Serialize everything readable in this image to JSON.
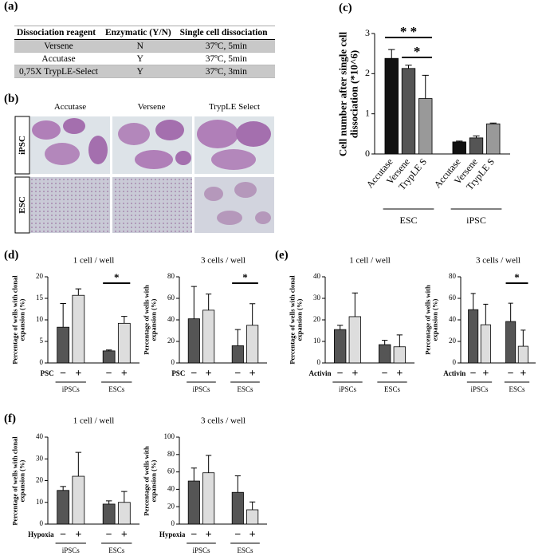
{
  "panel_labels": [
    "(a)",
    "(b)",
    "(c)",
    "(d)",
    "(e)",
    "(f)"
  ],
  "table": {
    "headers": [
      "Dissociation reagent",
      "Enzymatic (Y/N)",
      "Single cell dissociation"
    ],
    "rows": [
      [
        "Versene",
        "N",
        "37ºC, 5min"
      ],
      [
        "Accutase",
        "Y",
        "37ºC, 5min"
      ],
      [
        "0,75X TrypLE-Select",
        "Y",
        "37ºC, 3min"
      ]
    ]
  },
  "images": {
    "columns": [
      "Accutase",
      "Versene",
      "TrypLE Select"
    ],
    "rows": [
      "iPSC",
      "ESC"
    ]
  },
  "chart_data": [
    {
      "type": "bar",
      "ylabel": "Cell number after single cell dissociation (*10^6)",
      "categories": [
        "Accutase",
        "Versene",
        "TrypLE S",
        "Accutase",
        "Versene",
        "TrypLE S"
      ],
      "groups": [
        "ESC",
        "iPSC"
      ],
      "values": [
        2.38,
        2.13,
        1.38,
        0.3,
        0.4,
        0.75
      ],
      "errors": [
        0.22,
        0.08,
        0.58,
        0.02,
        0.05,
        0.02
      ],
      "colors": [
        "#111111",
        "#555555",
        "#999999",
        "#111111",
        "#555555",
        "#999999"
      ],
      "ylim": [
        0,
        3
      ],
      "yticks": [
        0,
        1,
        2,
        3
      ],
      "annotations": [
        "* *",
        "*"
      ]
    },
    {
      "type": "bar",
      "title": "1 cell / well",
      "ylabel": "Percentage of wells with clonal expansion (%)",
      "condition": "PSC",
      "categories": [
        "−",
        "+",
        "−",
        "+"
      ],
      "groups": [
        "iPSCs",
        "ESCs"
      ],
      "values": [
        8.3,
        15.7,
        2.8,
        9.2
      ],
      "errors": [
        5.5,
        1.5,
        0.2,
        1.6
      ],
      "colors": [
        "#555555",
        "#dddddd",
        "#555555",
        "#dddddd"
      ],
      "ylim": [
        0,
        20
      ],
      "yticks": [
        0,
        5,
        10,
        15,
        20
      ],
      "annotations": [
        "*"
      ]
    },
    {
      "type": "bar",
      "title": "3 cells / well",
      "ylabel": "Percentage of wells with expansion (%)",
      "condition": "PSC",
      "categories": [
        "−",
        "+",
        "−",
        "+"
      ],
      "groups": [
        "iPSCs",
        "ESCs"
      ],
      "values": [
        41,
        49,
        16,
        35
      ],
      "errors": [
        30,
        15,
        15,
        20
      ],
      "colors": [
        "#555555",
        "#dddddd",
        "#555555",
        "#dddddd"
      ],
      "ylim": [
        0,
        80
      ],
      "yticks": [
        0,
        20,
        40,
        60,
        80
      ],
      "annotations": [
        "*"
      ]
    },
    {
      "type": "bar",
      "title": "1 cell / well",
      "ylabel": "Percentage of wells with clonal expansion (%)",
      "condition": "Activin",
      "categories": [
        "−",
        "+",
        "−",
        "+"
      ],
      "groups": [
        "iPSCs",
        "ESCs"
      ],
      "values": [
        15.5,
        21.5,
        8.5,
        7.5
      ],
      "errors": [
        2,
        11,
        2,
        5.5
      ],
      "colors": [
        "#555555",
        "#dddddd",
        "#555555",
        "#dddddd"
      ],
      "ylim": [
        0,
        40
      ],
      "yticks": [
        0,
        10,
        20,
        30,
        40
      ]
    },
    {
      "type": "bar",
      "title": "3 cells / well",
      "ylabel": "Percentage of wells with expansion (%)",
      "condition": "Activin",
      "categories": [
        "−",
        "+",
        "−",
        "+"
      ],
      "groups": [
        "iPSCs",
        "ESCs"
      ],
      "values": [
        49.5,
        35.5,
        38.5,
        15.5
      ],
      "errors": [
        15,
        19,
        17,
        15
      ],
      "colors": [
        "#555555",
        "#dddddd",
        "#555555",
        "#dddddd"
      ],
      "ylim": [
        0,
        80
      ],
      "yticks": [
        0,
        20,
        40,
        60,
        80
      ],
      "annotations": [
        "*"
      ]
    },
    {
      "type": "bar",
      "title": "1 cell / well",
      "ylabel": "Percentage of wells with clonal expansion (%)",
      "condition": "Hypoxia",
      "categories": [
        "−",
        "+",
        "−",
        "+"
      ],
      "groups": [
        "iPSCs",
        "ESCs"
      ],
      "values": [
        15.5,
        22,
        9.2,
        10
      ],
      "errors": [
        1.8,
        11,
        1.5,
        5
      ],
      "colors": [
        "#555555",
        "#dddddd",
        "#555555",
        "#dddddd"
      ],
      "ylim": [
        0,
        40
      ],
      "yticks": [
        0,
        10,
        20,
        30,
        40
      ]
    },
    {
      "type": "bar",
      "title": "3 cells / well",
      "ylabel": "Percentage of wells with expansion (%)",
      "condition": "Hypoxia",
      "categories": [
        "−",
        "+",
        "−",
        "+"
      ],
      "groups": [
        "iPSCs",
        "ESCs"
      ],
      "values": [
        49.5,
        59,
        36.5,
        16.5
      ],
      "errors": [
        15,
        20,
        19,
        9
      ],
      "colors": [
        "#555555",
        "#dddddd",
        "#555555",
        "#dddddd"
      ],
      "ylim": [
        0,
        100
      ],
      "yticks": [
        0,
        20,
        40,
        60,
        80,
        100
      ]
    }
  ]
}
